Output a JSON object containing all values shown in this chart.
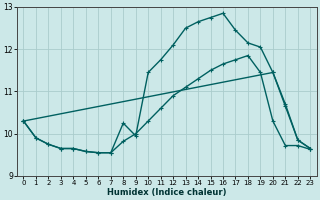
{
  "xlabel": "Humidex (Indice chaleur)",
  "background_color": "#cce8e8",
  "grid_color": "#aacccc",
  "line_color": "#006060",
  "xlim": [
    -0.5,
    23.5
  ],
  "ylim": [
    9,
    13
  ],
  "yticks": [
    9,
    10,
    11,
    12,
    13
  ],
  "xticks": [
    0,
    1,
    2,
    3,
    4,
    5,
    6,
    7,
    8,
    9,
    10,
    11,
    12,
    13,
    14,
    15,
    16,
    17,
    18,
    19,
    20,
    21,
    22,
    23
  ],
  "line1_x": [
    0,
    1,
    2,
    3,
    4,
    5,
    6,
    7,
    8,
    9,
    10,
    11,
    12,
    13,
    14,
    15,
    16,
    17,
    18,
    19,
    20,
    21,
    22,
    23
  ],
  "line1_y": [
    10.3,
    9.9,
    9.75,
    9.65,
    9.65,
    9.58,
    9.55,
    9.55,
    10.25,
    9.95,
    11.45,
    11.75,
    12.1,
    12.5,
    12.65,
    12.75,
    12.85,
    12.45,
    12.15,
    12.05,
    11.45,
    10.7,
    9.85,
    9.65
  ],
  "line2_x": [
    0,
    1,
    2,
    3,
    4,
    5,
    6,
    7,
    8,
    9,
    10,
    11,
    12,
    13,
    14,
    15,
    16,
    17,
    18,
    19,
    20,
    21,
    22,
    23
  ],
  "line2_y": [
    10.3,
    9.9,
    9.75,
    9.65,
    9.65,
    9.58,
    9.55,
    9.55,
    9.82,
    10.0,
    10.3,
    10.6,
    10.9,
    11.1,
    11.3,
    11.5,
    11.65,
    11.75,
    11.85,
    11.45,
    10.3,
    9.72,
    9.72,
    9.63
  ],
  "line3_x": [
    0,
    20,
    21,
    22,
    23
  ],
  "line3_y": [
    10.3,
    11.45,
    10.65,
    9.85,
    9.65
  ],
  "markersize": 3,
  "linewidth": 1.0
}
